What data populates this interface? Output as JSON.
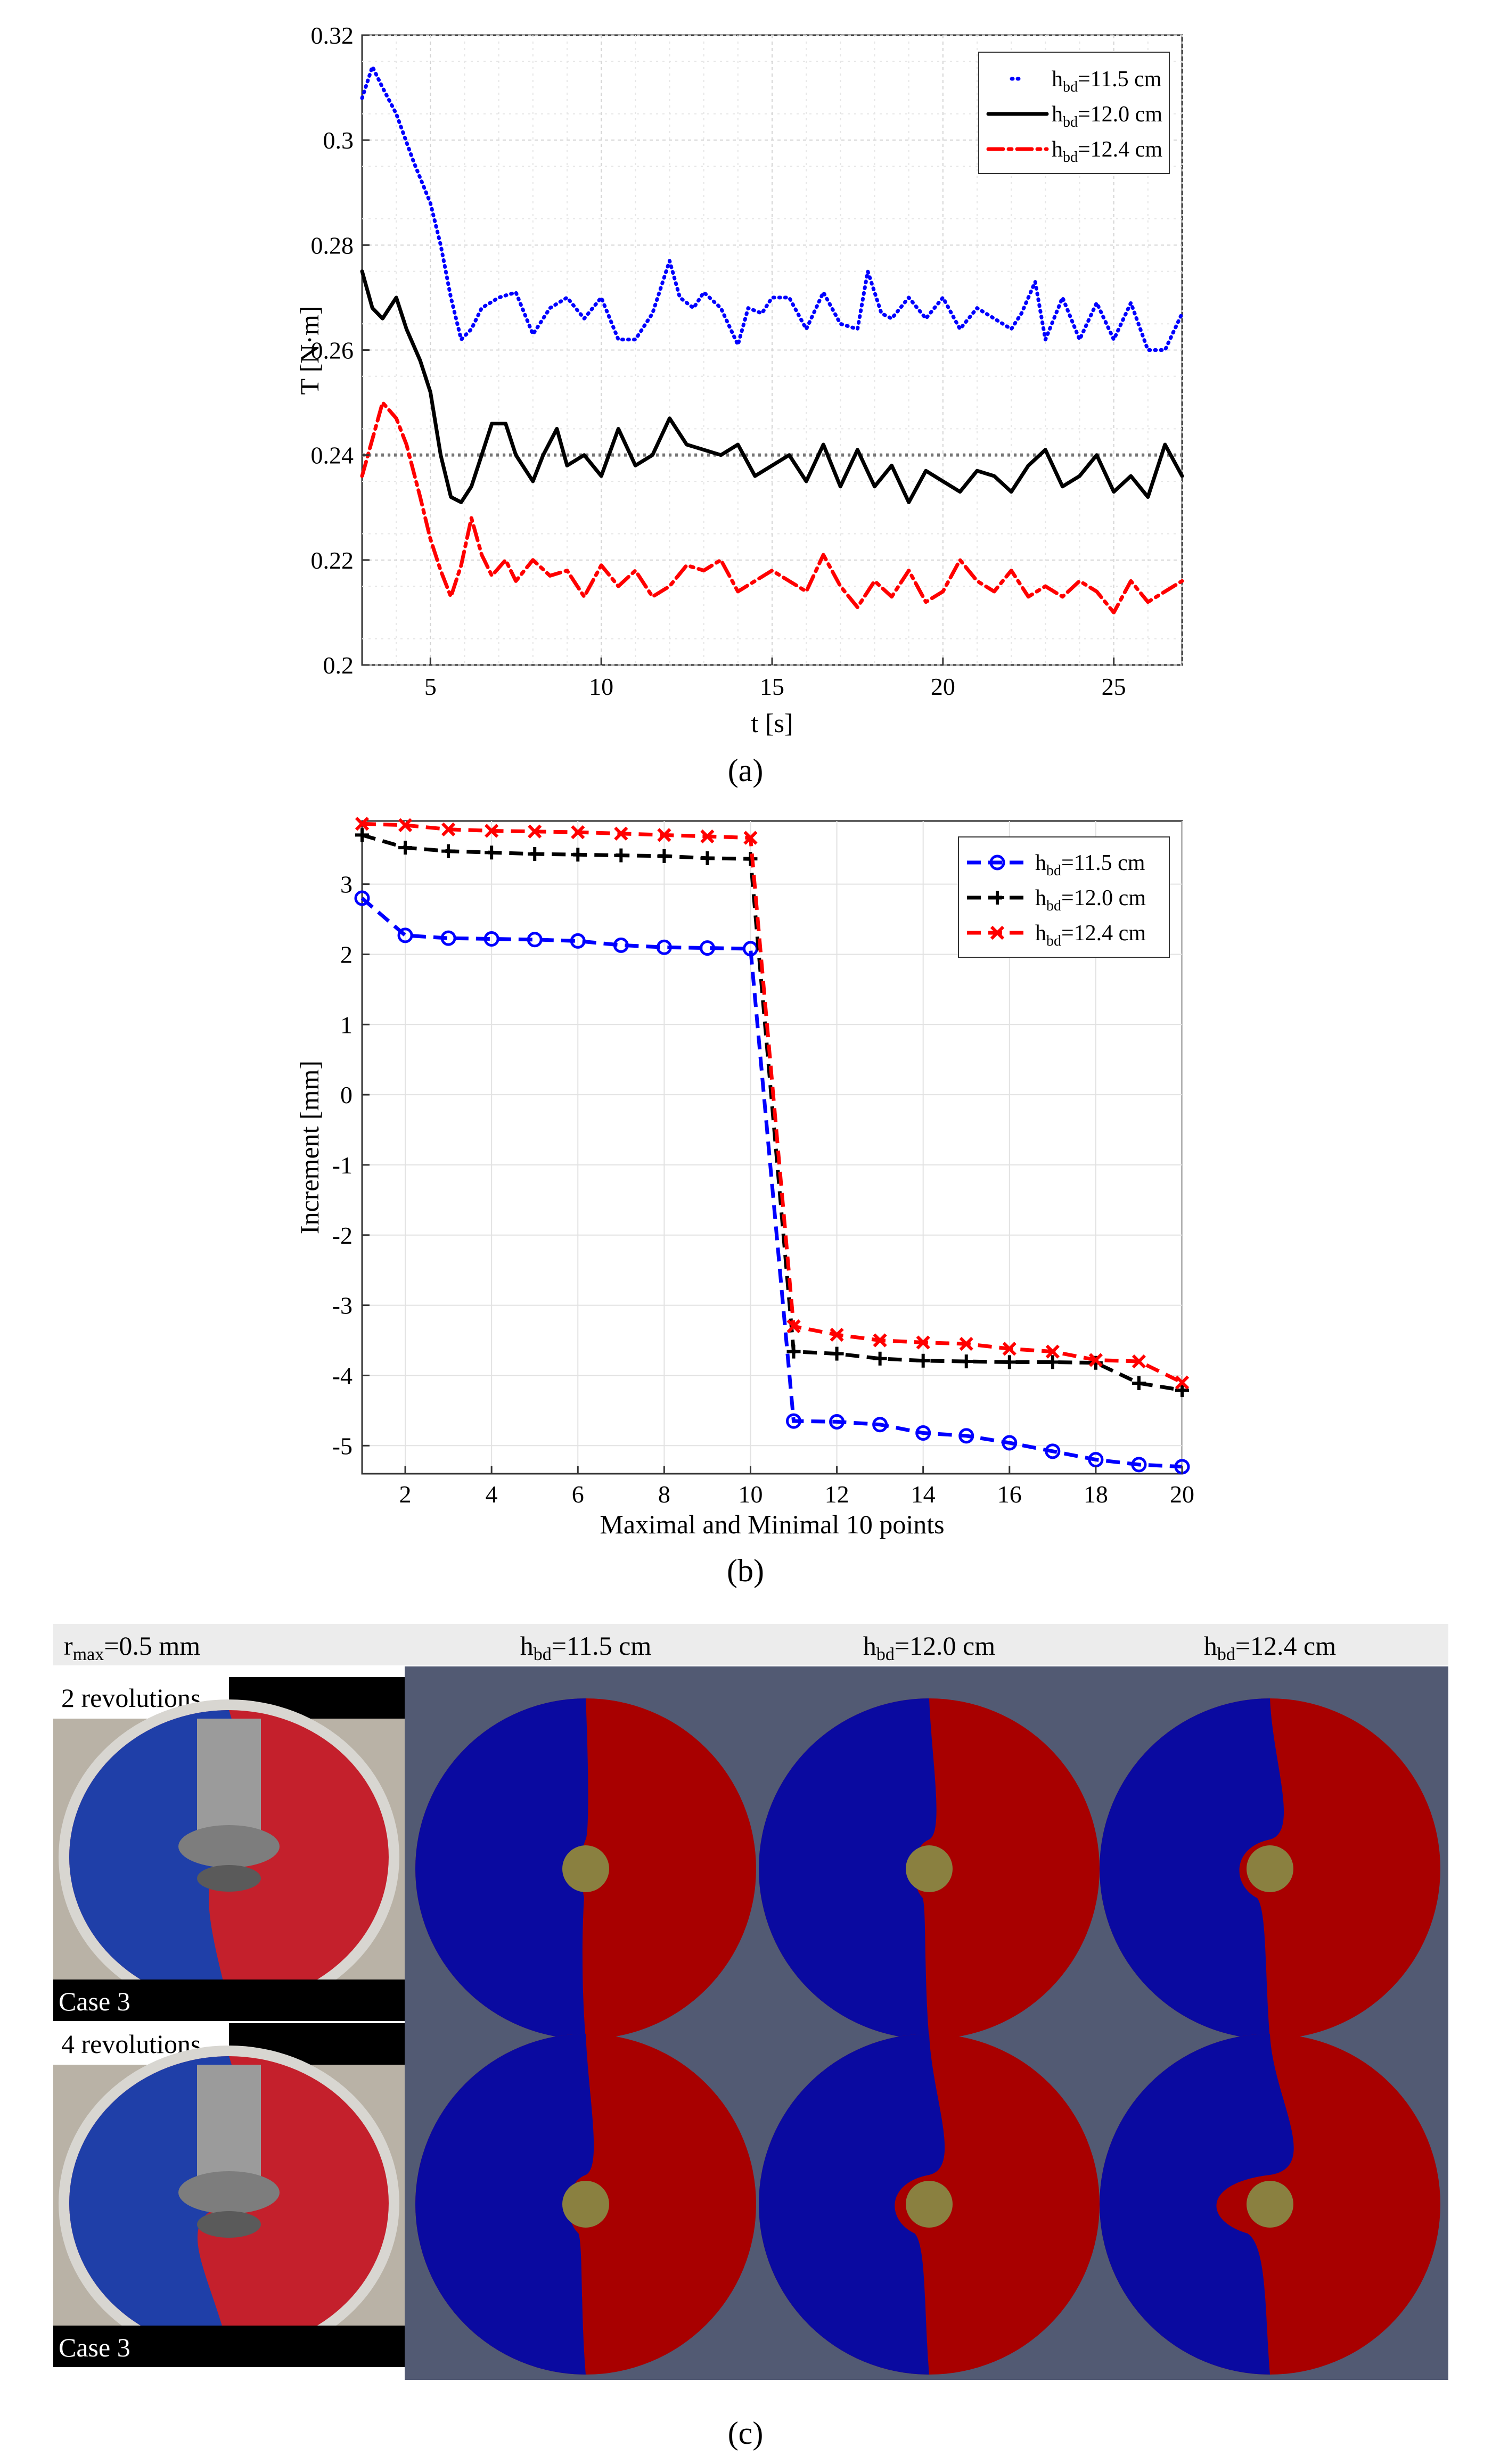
{
  "chart_data": [
    {
      "type": "line",
      "panel_label": "(a)",
      "xlabel": "t [s]",
      "ylabel": "T [N·m]",
      "xlim": [
        3,
        27
      ],
      "ylim": [
        0.2,
        0.32
      ],
      "xticks": [
        5,
        10,
        15,
        20,
        25
      ],
      "yticks": [
        0.2,
        0.22,
        0.24,
        0.26,
        0.28,
        0.3,
        0.32
      ],
      "grid": true,
      "legend_position": "top-right",
      "reference_line": 0.24,
      "series": [
        {
          "name_base": "h",
          "name_sub": "bd",
          "name_rest": "=11.5 cm",
          "style": "dotted",
          "color": "#0000ff",
          "x": [
            3,
            3.3,
            3.6,
            4,
            4.5,
            5,
            5.3,
            5.6,
            5.9,
            6.2,
            6.5,
            7,
            7.5,
            8,
            8.5,
            9,
            9.5,
            10,
            10.5,
            11,
            11.5,
            12,
            12.3,
            12.7,
            13,
            13.5,
            14,
            14.3,
            14.7,
            15,
            15.5,
            16,
            16.5,
            17,
            17.5,
            17.8,
            18.2,
            18.5,
            19,
            19.5,
            20,
            20.5,
            21,
            21.5,
            22,
            22.3,
            22.7,
            23,
            23.5,
            24,
            24.5,
            25,
            25.5,
            26,
            26.5,
            27
          ],
          "y": [
            0.308,
            0.314,
            0.31,
            0.305,
            0.296,
            0.288,
            0.28,
            0.27,
            0.262,
            0.264,
            0.268,
            0.27,
            0.271,
            0.263,
            0.268,
            0.27,
            0.266,
            0.27,
            0.262,
            0.262,
            0.267,
            0.277,
            0.27,
            0.268,
            0.271,
            0.268,
            0.261,
            0.268,
            0.267,
            0.27,
            0.27,
            0.264,
            0.271,
            0.265,
            0.264,
            0.275,
            0.267,
            0.266,
            0.27,
            0.266,
            0.27,
            0.264,
            0.268,
            0.266,
            0.264,
            0.267,
            0.273,
            0.262,
            0.27,
            0.262,
            0.269,
            0.262,
            0.269,
            0.26,
            0.26,
            0.267
          ]
        },
        {
          "name_base": "h",
          "name_sub": "bd",
          "name_rest": "=12.0 cm",
          "style": "solid",
          "color": "#000000",
          "x": [
            3,
            3.3,
            3.6,
            4,
            4.3,
            4.7,
            5,
            5.3,
            5.6,
            5.9,
            6.2,
            6.5,
            6.8,
            7.2,
            7.5,
            8,
            8.3,
            8.7,
            9,
            9.5,
            10,
            10.5,
            11,
            11.5,
            12,
            12.5,
            13,
            13.5,
            14,
            14.5,
            15,
            15.5,
            16,
            16.5,
            17,
            17.5,
            18,
            18.5,
            19,
            19.5,
            20,
            20.5,
            21,
            21.5,
            22,
            22.5,
            23,
            23.5,
            24,
            24.5,
            25,
            25.5,
            26,
            26.5,
            27
          ],
          "y": [
            0.275,
            0.268,
            0.266,
            0.27,
            0.264,
            0.258,
            0.252,
            0.24,
            0.232,
            0.231,
            0.234,
            0.24,
            0.246,
            0.246,
            0.24,
            0.235,
            0.24,
            0.245,
            0.238,
            0.24,
            0.236,
            0.245,
            0.238,
            0.24,
            0.247,
            0.242,
            0.241,
            0.24,
            0.242,
            0.236,
            0.238,
            0.24,
            0.235,
            0.242,
            0.234,
            0.241,
            0.234,
            0.238,
            0.231,
            0.237,
            0.235,
            0.233,
            0.237,
            0.236,
            0.233,
            0.238,
            0.241,
            0.234,
            0.236,
            0.24,
            0.233,
            0.236,
            0.232,
            0.242,
            0.236
          ]
        },
        {
          "name_base": "h",
          "name_sub": "bd",
          "name_rest": "=12.4 cm",
          "style": "dashdot",
          "color": "#ff0000",
          "x": [
            3,
            3.3,
            3.6,
            4,
            4.3,
            4.7,
            5,
            5.3,
            5.6,
            5.9,
            6.2,
            6.5,
            6.8,
            7.2,
            7.5,
            8,
            8.5,
            9,
            9.5,
            10,
            10.5,
            11,
            11.5,
            12,
            12.5,
            13,
            13.5,
            14,
            14.5,
            15,
            15.5,
            16,
            16.5,
            17,
            17.5,
            18,
            18.5,
            19,
            19.5,
            20,
            20.5,
            21,
            21.5,
            22,
            22.5,
            23,
            23.5,
            24,
            24.5,
            25,
            25.5,
            26,
            26.5,
            27
          ],
          "y": [
            0.236,
            0.243,
            0.25,
            0.247,
            0.242,
            0.232,
            0.224,
            0.218,
            0.213,
            0.219,
            0.228,
            0.221,
            0.217,
            0.22,
            0.216,
            0.22,
            0.217,
            0.218,
            0.213,
            0.219,
            0.215,
            0.218,
            0.213,
            0.215,
            0.219,
            0.218,
            0.22,
            0.214,
            0.216,
            0.218,
            0.216,
            0.214,
            0.221,
            0.215,
            0.211,
            0.216,
            0.213,
            0.218,
            0.212,
            0.214,
            0.22,
            0.216,
            0.214,
            0.218,
            0.213,
            0.215,
            0.213,
            0.216,
            0.214,
            0.21,
            0.216,
            0.212,
            0.214,
            0.216
          ]
        }
      ]
    },
    {
      "type": "line",
      "panel_label": "(b)",
      "xlabel": "Maximal and Minimal 10 points",
      "ylabel": "Increment [mm]",
      "xlim": [
        1,
        20
      ],
      "ylim": [
        -5.4,
        3.9
      ],
      "xticks": [
        2,
        4,
        6,
        8,
        10,
        12,
        14,
        16,
        18,
        20
      ],
      "yticks": [
        -5,
        -4,
        -3,
        -2,
        -1,
        0,
        1,
        2,
        3
      ],
      "grid": true,
      "legend_position": "top-right",
      "x": [
        1,
        2,
        3,
        4,
        5,
        6,
        7,
        8,
        9,
        10,
        11,
        12,
        13,
        14,
        15,
        16,
        17,
        18,
        19,
        20
      ],
      "series": [
        {
          "name_base": "h",
          "name_sub": "bd",
          "name_rest": "=11.5 cm",
          "marker": "o",
          "color": "#0000ff",
          "values": [
            2.8,
            2.27,
            2.23,
            2.22,
            2.21,
            2.19,
            2.13,
            2.1,
            2.09,
            2.08,
            -4.65,
            -4.66,
            -4.7,
            -4.82,
            -4.86,
            -4.96,
            -5.08,
            -5.2,
            -5.27,
            -5.3
          ]
        },
        {
          "name_base": "h",
          "name_sub": "bd",
          "name_rest": "=12.0 cm",
          "marker": "+",
          "color": "#000000",
          "values": [
            3.7,
            3.52,
            3.47,
            3.45,
            3.43,
            3.42,
            3.41,
            3.4,
            3.37,
            3.36,
            -3.66,
            -3.69,
            -3.76,
            -3.79,
            -3.8,
            -3.81,
            -3.81,
            -3.82,
            -4.11,
            -4.21
          ]
        },
        {
          "name_base": "h",
          "name_sub": "bd",
          "name_rest": "=12.4 cm",
          "marker": "x",
          "color": "#ff0000",
          "values": [
            3.86,
            3.84,
            3.78,
            3.76,
            3.75,
            3.74,
            3.72,
            3.7,
            3.68,
            3.66,
            -3.3,
            -3.42,
            -3.5,
            -3.53,
            -3.55,
            -3.62,
            -3.66,
            -3.78,
            -3.8,
            -4.1
          ]
        }
      ]
    }
  ],
  "panel_c": {
    "label": "(c)",
    "header_base": "r",
    "header_sub": "max",
    "header_rest": "=0.5 mm",
    "columns": [
      {
        "base": "h",
        "sub": "bd",
        "rest": "=11.5 cm"
      },
      {
        "base": "h",
        "sub": "bd",
        "rest": "=12.0 cm"
      },
      {
        "base": "h",
        "sub": "bd",
        "rest": "=12.4 cm"
      }
    ],
    "rows": [
      {
        "label": "2 revolutions",
        "caption": "Case 3"
      },
      {
        "label": "4 revolutions",
        "caption": "Case 3"
      }
    ],
    "colors": {
      "background": "#525a73",
      "blue_sand": "#0a0aa0",
      "red_sand": "#a80000",
      "shaft": "#8a8040",
      "header_bg": "#ececec"
    }
  }
}
